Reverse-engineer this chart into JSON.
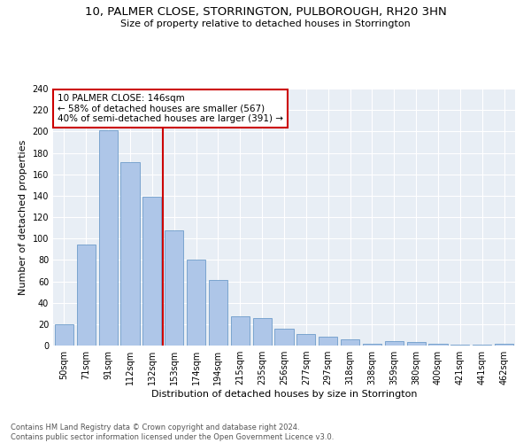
{
  "title": "10, PALMER CLOSE, STORRINGTON, PULBOROUGH, RH20 3HN",
  "subtitle": "Size of property relative to detached houses in Storrington",
  "xlabel": "Distribution of detached houses by size in Storrington",
  "ylabel": "Number of detached properties",
  "categories": [
    "50sqm",
    "71sqm",
    "91sqm",
    "112sqm",
    "132sqm",
    "153sqm",
    "174sqm",
    "194sqm",
    "215sqm",
    "235sqm",
    "256sqm",
    "277sqm",
    "297sqm",
    "318sqm",
    "338sqm",
    "359sqm",
    "380sqm",
    "400sqm",
    "421sqm",
    "441sqm",
    "462sqm"
  ],
  "values": [
    20,
    94,
    201,
    171,
    139,
    108,
    80,
    61,
    27,
    26,
    16,
    11,
    8,
    6,
    2,
    4,
    3,
    2,
    1,
    1,
    2
  ],
  "bar_color": "#aec6e8",
  "bar_edge_color": "#5a8fc2",
  "vline_color": "#cc0000",
  "annotation_box_edge": "#cc0000",
  "marker_label": "10 PALMER CLOSE: 146sqm",
  "annotation_line1": "← 58% of detached houses are smaller (567)",
  "annotation_line2": "40% of semi-detached houses are larger (391) →",
  "background_color": "#e8eef5",
  "footer_text": "Contains HM Land Registry data © Crown copyright and database right 2024.\nContains public sector information licensed under the Open Government Licence v3.0.",
  "ylim": [
    0,
    240
  ],
  "yticks": [
    0,
    20,
    40,
    60,
    80,
    100,
    120,
    140,
    160,
    180,
    200,
    220,
    240
  ],
  "title_fontsize": 9.5,
  "subtitle_fontsize": 8,
  "ylabel_fontsize": 8,
  "xlabel_fontsize": 8,
  "tick_fontsize": 7,
  "footer_fontsize": 6,
  "annot_fontsize": 7.5
}
